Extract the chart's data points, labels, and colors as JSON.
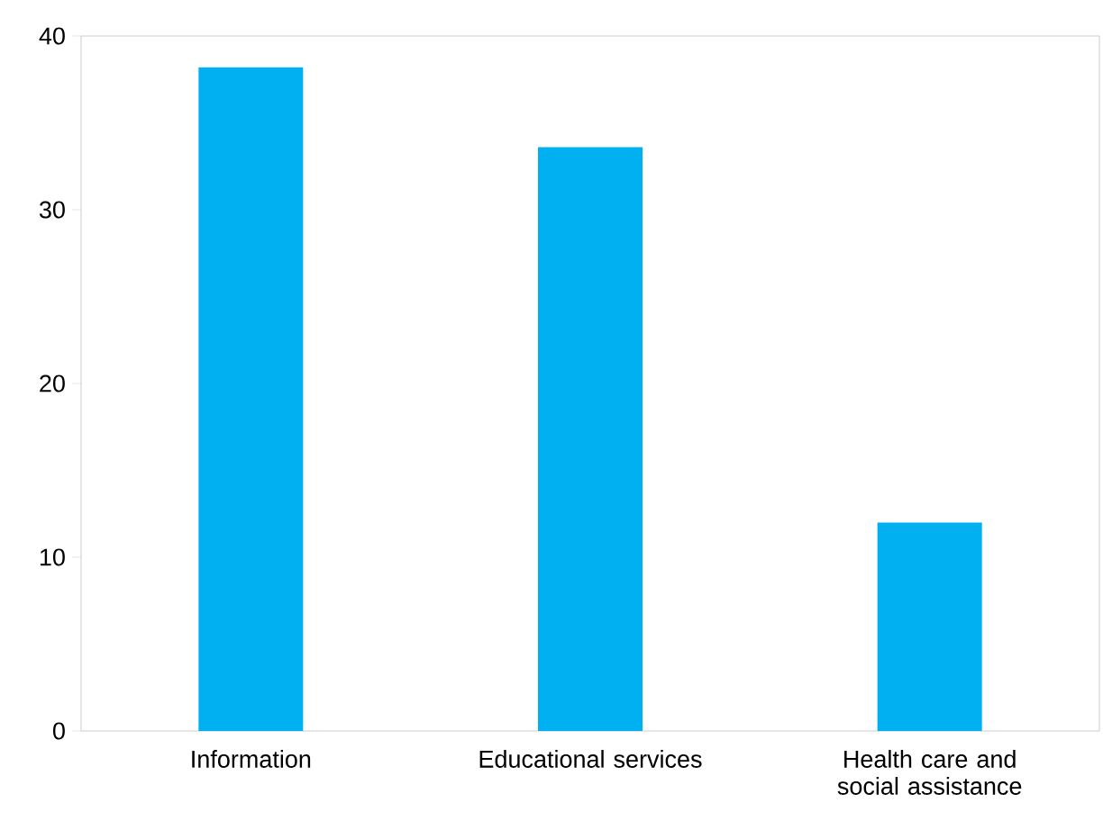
{
  "chart_data": {
    "type": "bar",
    "categories": [
      "Information",
      "Educational services",
      "Health care and social assistance"
    ],
    "values": [
      38.2,
      33.6,
      12.0
    ],
    "color": "#00b0f0",
    "ylim": [
      0,
      40
    ],
    "yticks": [
      0,
      10,
      20,
      30,
      40
    ]
  }
}
